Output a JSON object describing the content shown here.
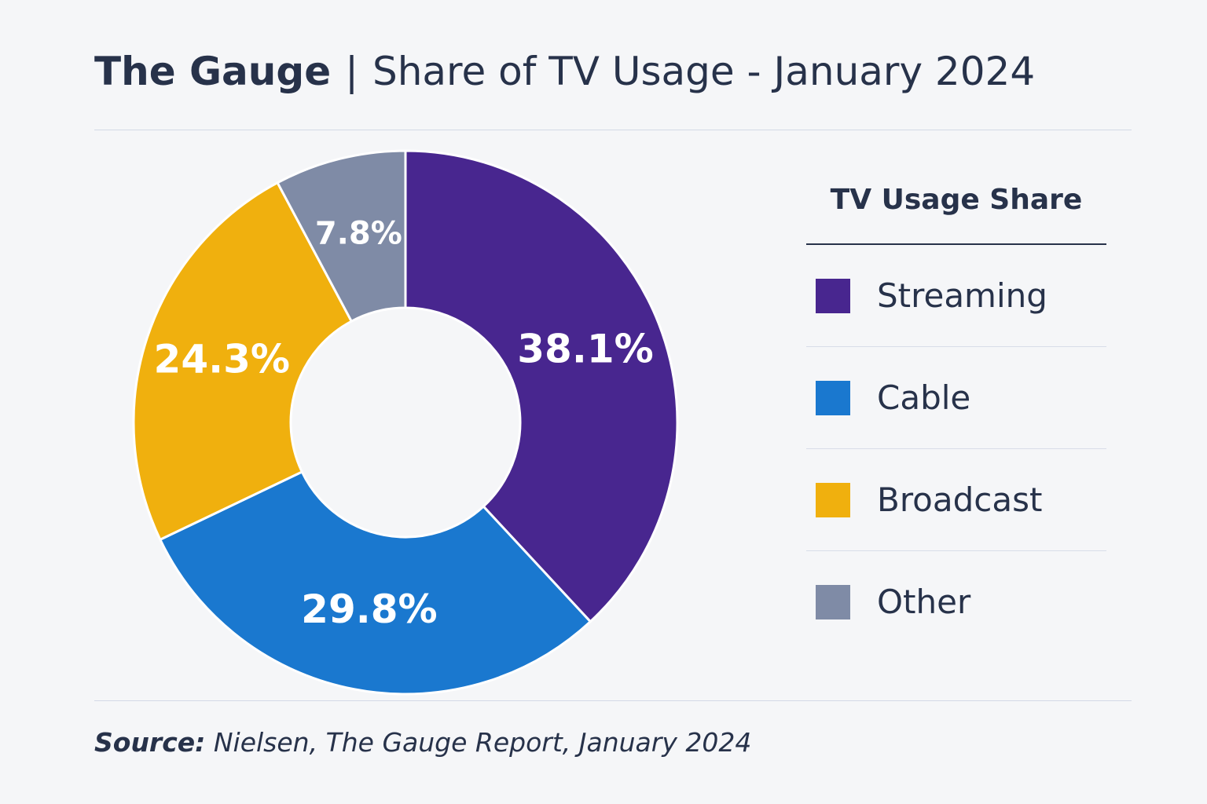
{
  "header": {
    "title_bold": "The Gauge",
    "separator": "|",
    "title_rest": "Share of TV Usage - January 2024"
  },
  "chart_data": {
    "type": "pie",
    "style": "donut",
    "categories": [
      "Streaming",
      "Cable",
      "Broadcast",
      "Other"
    ],
    "values": [
      38.1,
      29.8,
      24.3,
      7.8
    ],
    "labels": [
      "38.1%",
      "29.8%",
      "24.3%",
      "7.8%"
    ],
    "colors": [
      "#48268f",
      "#1a78cf",
      "#f0b00e",
      "#7f8ba6"
    ],
    "legend_title": "TV Usage Share",
    "legend_position": "right"
  },
  "legend": {
    "title": "TV Usage Share",
    "items": [
      {
        "label": "Streaming",
        "color": "#48268f"
      },
      {
        "label": "Cable",
        "color": "#1a78cf"
      },
      {
        "label": "Broadcast",
        "color": "#f0b00e"
      },
      {
        "label": "Other",
        "color": "#7f8ba6"
      }
    ]
  },
  "footer": {
    "source_label": "Source:",
    "source_text": "Nielsen, The Gauge Report, January 2024"
  }
}
